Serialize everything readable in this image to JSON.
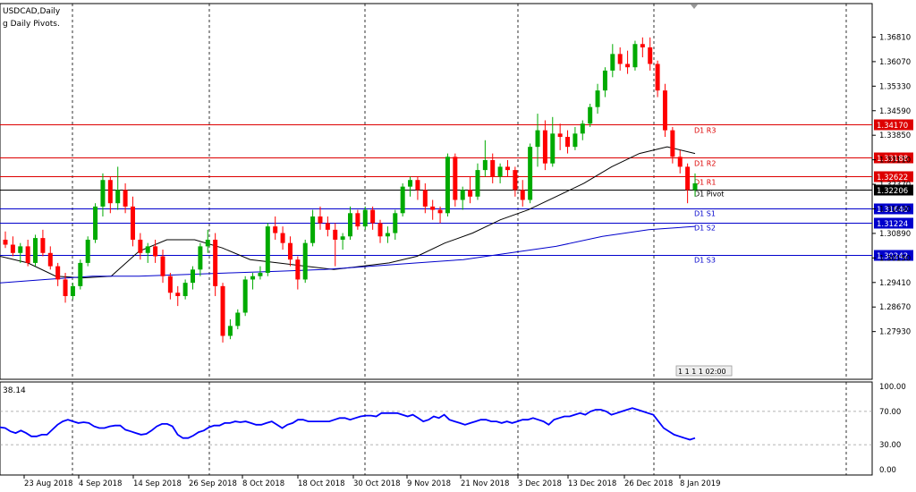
{
  "window": {
    "title": "USDCAD,Daily",
    "indicator_label": "g Daily Pivots.",
    "subwindow_label": "38.14"
  },
  "colors": {
    "background": "#ffffff",
    "bull": "#00aa00",
    "bear": "#ff0000",
    "resistance": "#dd0000",
    "support": "#0000cc",
    "pivot": "#000000",
    "ma_fast": "#000000",
    "ma_slow": "#0000cc",
    "oscillator": "#0000ff",
    "grid": "#000000"
  },
  "chart_data": [
    {
      "type": "candlestick",
      "symbol": "USDCAD",
      "timeframe": "Daily",
      "ylim": [
        1.2705,
        1.3745
      ],
      "y_ticks": [
        "1.36810",
        "1.36070",
        "1.35330",
        "1.34590",
        "1.33850",
        "1.33110",
        "1.32370",
        "1.31630",
        "1.30890",
        "1.30150",
        "1.29410",
        "1.28670",
        "1.27930"
      ],
      "x_labels": [
        "23 Aug 2018",
        "4 Sep 2018",
        "14 Sep 2018",
        "26 Sep 2018",
        "8 Oct 2018",
        "18 Oct 2018",
        "30 Oct 2018",
        "9 Nov 2018",
        "21 Nov 2018",
        "3 Dec 2018",
        "13 Dec 2018",
        "26 Dec 2018",
        "8 Jan 2019"
      ],
      "ohlc": [
        [
          1.307,
          1.3095,
          1.3045,
          1.3055
        ],
        [
          1.3055,
          1.308,
          1.302,
          1.303
        ],
        [
          1.303,
          1.306,
          1.3,
          1.305
        ],
        [
          1.305,
          1.307,
          1.299,
          1.3
        ],
        [
          1.3,
          1.3085,
          1.299,
          1.3075
        ],
        [
          1.3075,
          1.31,
          1.302,
          1.303
        ],
        [
          1.303,
          1.305,
          1.298,
          1.299
        ],
        [
          1.299,
          1.3,
          1.293,
          1.295
        ],
        [
          1.295,
          1.297,
          1.288,
          1.29
        ],
        [
          1.29,
          1.294,
          1.289,
          1.293
        ],
        [
          1.293,
          1.301,
          1.292,
          1.3
        ],
        [
          1.3,
          1.308,
          1.299,
          1.307
        ],
        [
          1.307,
          1.318,
          1.306,
          1.317
        ],
        [
          1.317,
          1.327,
          1.314,
          1.325
        ],
        [
          1.325,
          1.326,
          1.315,
          1.318
        ],
        [
          1.318,
          1.329,
          1.316,
          1.322
        ],
        [
          1.322,
          1.324,
          1.315,
          1.317
        ],
        [
          1.317,
          1.32,
          1.305,
          1.307
        ],
        [
          1.307,
          1.309,
          1.301,
          1.303
        ],
        [
          1.303,
          1.306,
          1.3,
          1.305
        ],
        [
          1.305,
          1.307,
          1.3,
          1.302
        ],
        [
          1.302,
          1.304,
          1.294,
          1.296
        ],
        [
          1.296,
          1.297,
          1.289,
          1.291
        ],
        [
          1.291,
          1.293,
          1.287,
          1.29
        ],
        [
          1.29,
          1.295,
          1.289,
          1.294
        ],
        [
          1.294,
          1.299,
          1.292,
          1.298
        ],
        [
          1.298,
          1.306,
          1.296,
          1.305
        ],
        [
          1.305,
          1.31,
          1.303,
          1.307
        ],
        [
          1.307,
          1.309,
          1.29,
          1.293
        ],
        [
          1.293,
          1.294,
          1.276,
          1.278
        ],
        [
          1.278,
          1.283,
          1.277,
          1.281
        ],
        [
          1.281,
          1.286,
          1.28,
          1.285
        ],
        [
          1.285,
          1.296,
          1.284,
          1.295
        ],
        [
          1.295,
          1.297,
          1.292,
          1.296
        ],
        [
          1.296,
          1.299,
          1.295,
          1.297
        ],
        [
          1.297,
          1.312,
          1.296,
          1.311
        ],
        [
          1.311,
          1.314,
          1.307,
          1.309
        ],
        [
          1.309,
          1.311,
          1.304,
          1.306
        ],
        [
          1.306,
          1.308,
          1.299,
          1.301
        ],
        [
          1.301,
          1.302,
          1.292,
          1.295
        ],
        [
          1.295,
          1.307,
          1.294,
          1.306
        ],
        [
          1.306,
          1.316,
          1.305,
          1.314
        ],
        [
          1.314,
          1.317,
          1.31,
          1.312
        ],
        [
          1.312,
          1.314,
          1.308,
          1.31
        ],
        [
          1.31,
          1.312,
          1.299,
          1.307
        ],
        [
          1.307,
          1.309,
          1.304,
          1.308
        ],
        [
          1.308,
          1.317,
          1.307,
          1.315
        ],
        [
          1.315,
          1.316,
          1.31,
          1.311
        ],
        [
          1.311,
          1.317,
          1.31,
          1.316
        ],
        [
          1.316,
          1.317,
          1.31,
          1.312
        ],
        [
          1.312,
          1.313,
          1.306,
          1.308
        ],
        [
          1.308,
          1.311,
          1.306,
          1.309
        ],
        [
          1.309,
          1.316,
          1.307,
          1.315
        ],
        [
          1.315,
          1.324,
          1.314,
          1.323
        ],
        [
          1.323,
          1.326,
          1.32,
          1.325
        ],
        [
          1.325,
          1.326,
          1.319,
          1.322
        ],
        [
          1.322,
          1.324,
          1.315,
          1.317
        ],
        [
          1.317,
          1.319,
          1.313,
          1.316
        ],
        [
          1.316,
          1.317,
          1.312,
          1.315
        ],
        [
          1.315,
          1.333,
          1.314,
          1.332
        ],
        [
          1.332,
          1.333,
          1.317,
          1.319
        ],
        [
          1.319,
          1.323,
          1.316,
          1.322
        ],
        [
          1.322,
          1.326,
          1.318,
          1.32
        ],
        [
          1.32,
          1.33,
          1.319,
          1.328
        ],
        [
          1.328,
          1.337,
          1.326,
          1.331
        ],
        [
          1.331,
          1.333,
          1.324,
          1.326
        ],
        [
          1.326,
          1.33,
          1.324,
          1.329
        ],
        [
          1.329,
          1.331,
          1.326,
          1.328
        ],
        [
          1.328,
          1.329,
          1.32,
          1.322
        ],
        [
          1.322,
          1.325,
          1.317,
          1.319
        ],
        [
          1.319,
          1.336,
          1.318,
          1.335
        ],
        [
          1.335,
          1.345,
          1.329,
          1.34
        ],
        [
          1.34,
          1.343,
          1.328,
          1.33
        ],
        [
          1.33,
          1.344,
          1.329,
          1.339
        ],
        [
          1.339,
          1.342,
          1.334,
          1.338
        ],
        [
          1.338,
          1.34,
          1.333,
          1.335
        ],
        [
          1.335,
          1.341,
          1.334,
          1.339
        ],
        [
          1.339,
          1.343,
          1.337,
          1.342
        ],
        [
          1.342,
          1.348,
          1.341,
          1.347
        ],
        [
          1.347,
          1.354,
          1.345,
          1.352
        ],
        [
          1.352,
          1.359,
          1.35,
          1.358
        ],
        [
          1.358,
          1.366,
          1.356,
          1.363
        ],
        [
          1.363,
          1.365,
          1.358,
          1.36
        ],
        [
          1.36,
          1.364,
          1.357,
          1.359
        ],
        [
          1.359,
          1.367,
          1.358,
          1.366
        ],
        [
          1.366,
          1.368,
          1.362,
          1.365
        ],
        [
          1.365,
          1.368,
          1.358,
          1.36
        ],
        [
          1.36,
          1.361,
          1.35,
          1.352
        ],
        [
          1.352,
          1.354,
          1.338,
          1.34
        ],
        [
          1.34,
          1.341,
          1.33,
          1.332
        ],
        [
          1.332,
          1.334,
          1.327,
          1.329
        ],
        [
          1.329,
          1.33,
          1.318,
          1.322
        ],
        [
          1.322,
          1.327,
          1.32,
          1.324
        ]
      ],
      "ma_fast": [
        1.302,
        1.3,
        1.296,
        1.2955,
        1.296,
        1.3035,
        1.307,
        1.307,
        1.3045,
        1.301,
        1.3,
        1.299,
        1.298,
        1.299,
        1.3,
        1.302,
        1.306,
        1.309,
        1.313,
        1.316,
        1.32,
        1.324,
        1.329,
        1.333,
        1.335,
        1.333
      ],
      "ma_slow": [
        1.294,
        1.295,
        1.296,
        1.296,
        1.2965,
        1.297,
        1.2975,
        1.298,
        1.299,
        1.3,
        1.301,
        1.303,
        1.305,
        1.308,
        1.31,
        1.311
      ],
      "pivots": [
        {
          "name": "D1 R3",
          "value": 1.3417,
          "label": "1.34170",
          "kind": "resistance"
        },
        {
          "name": "D1 R2",
          "value": 1.33188,
          "label": "1.33188",
          "kind": "resistance"
        },
        {
          "name": "D1 R1",
          "value": 1.32622,
          "label": "1.32622",
          "kind": "resistance"
        },
        {
          "name": "D1 Pivot",
          "value": 1.32206,
          "label": "1.32206",
          "kind": "pivot"
        },
        {
          "name": "D1 S1",
          "value": 1.3164,
          "label": "1.31640",
          "kind": "support"
        },
        {
          "name": "D1 S2",
          "value": 1.31224,
          "label": "1.31224",
          "kind": "support"
        },
        {
          "name": "D1 S3",
          "value": 1.30242,
          "label": "1.30242",
          "kind": "support"
        }
      ],
      "time_badge": {
        "text": "1 1 1 1 02:00"
      }
    },
    {
      "type": "line",
      "name": "oscillator",
      "ylim": [
        0,
        100
      ],
      "y_ticks": [
        "100.00",
        "70.00",
        "30.00",
        "0.00"
      ],
      "levels": [
        70,
        30
      ],
      "values": [
        51,
        50,
        46,
        44,
        47,
        44,
        40,
        40,
        42,
        42,
        48,
        54,
        58,
        60,
        58,
        56,
        57,
        56,
        52,
        50,
        50,
        52,
        53,
        53,
        48,
        46,
        44,
        42,
        43,
        47,
        52,
        55,
        55,
        52,
        42,
        38,
        38,
        41,
        45,
        47,
        51,
        53,
        53,
        56,
        56,
        58,
        57,
        58,
        56,
        54,
        54,
        56,
        58,
        54,
        50,
        54,
        56,
        60,
        60,
        58,
        58,
        58,
        58,
        58,
        60,
        62,
        62,
        60,
        62,
        64,
        65,
        65,
        64,
        68,
        68,
        68,
        68,
        66,
        64,
        66,
        62,
        58,
        60,
        64,
        62,
        66,
        60,
        58,
        56,
        54,
        56,
        58,
        60,
        60,
        58,
        58,
        56,
        58,
        56,
        58,
        60,
        60,
        62,
        60,
        58,
        54,
        60,
        62,
        64,
        64,
        66,
        68,
        66,
        70,
        72,
        72,
        70,
        66,
        68,
        70,
        72,
        74,
        72,
        70,
        68,
        66,
        58,
        50,
        46,
        42,
        40,
        38,
        36,
        38
      ]
    }
  ]
}
